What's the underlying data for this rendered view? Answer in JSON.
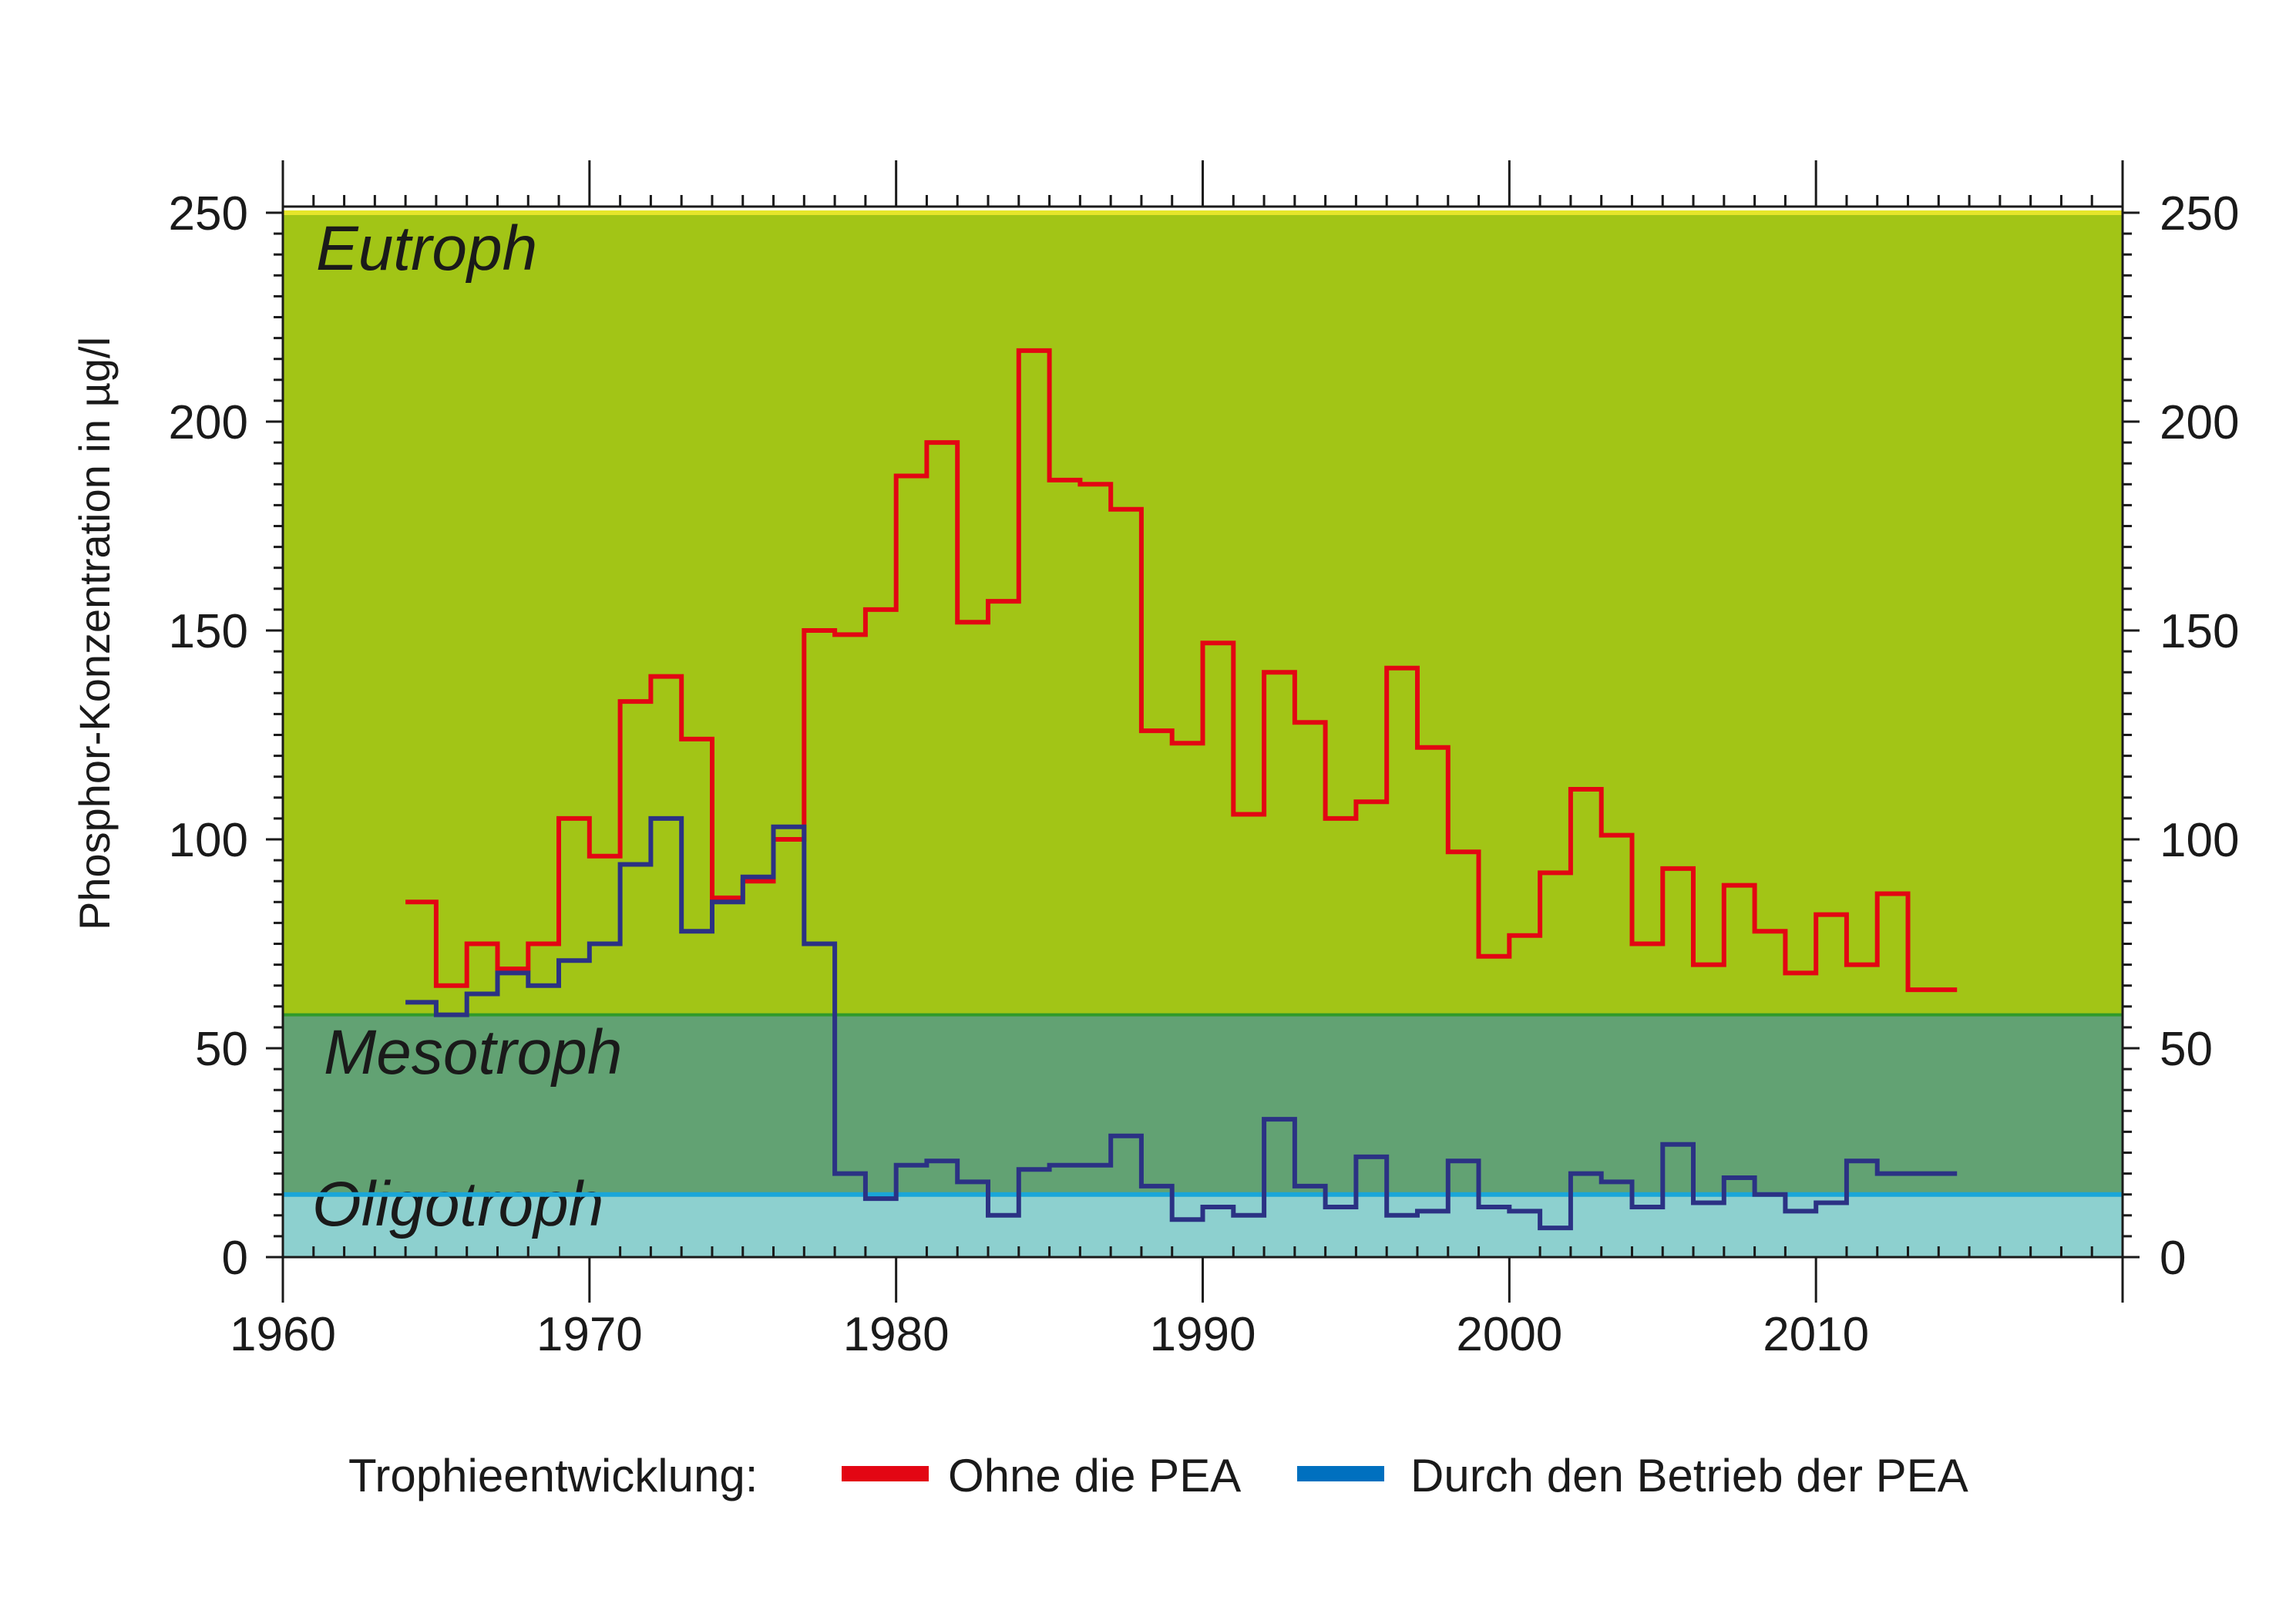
{
  "chart_data": {
    "type": "line",
    "step": true,
    "title": "",
    "xlabel": "",
    "ylabel": "Phosphor-Konzentration in µg/l",
    "xlim": [
      1960,
      2020
    ],
    "ylim": [
      0,
      250
    ],
    "x_ticks": [
      "1960",
      "1970",
      "1980",
      "1990",
      "2000",
      "2010"
    ],
    "y_ticks": [
      "0",
      "50",
      "100",
      "150",
      "200",
      "250"
    ],
    "zones": [
      {
        "label": "Eutroph",
        "from": 58,
        "to": 250,
        "color": "#a2c516"
      },
      {
        "label": "Mesotroph",
        "from": 15,
        "to": 58,
        "color": "#62a273"
      },
      {
        "label": "Oligotroph",
        "from": 0,
        "to": 15,
        "color": "#8dd0cf"
      }
    ],
    "legend": {
      "title": "Trophieentwicklung:",
      "position": "bottom",
      "items": [
        {
          "name": "Ohne die PEA",
          "color": "#e30613"
        },
        {
          "name": "Durch den Betrieb der PEA",
          "color": "#0070bf"
        }
      ]
    },
    "series": [
      {
        "name": "Ohne die PEA",
        "color": "#e30613",
        "x": [
          1964,
          1965,
          1966,
          1967,
          1968,
          1969,
          1970,
          1971,
          1972,
          1973,
          1974,
          1975,
          1976,
          1977,
          1978,
          1979,
          1980,
          1981,
          1982,
          1983,
          1984,
          1985,
          1986,
          1987,
          1988,
          1989,
          1990,
          1991,
          1992,
          1993,
          1994,
          1995,
          1996,
          1997,
          1998,
          1999,
          2000,
          2001,
          2002,
          2003,
          2004,
          2005,
          2006,
          2007,
          2008,
          2009,
          2010,
          2011,
          2012,
          2013,
          2014
        ],
        "values": [
          85,
          65,
          75,
          69,
          75,
          105,
          96,
          133,
          139,
          124,
          86,
          90,
          100,
          150,
          149,
          155,
          187,
          195,
          152,
          157,
          217,
          186,
          185,
          179,
          126,
          123,
          147,
          106,
          140,
          128,
          105,
          109,
          141,
          122,
          97,
          72,
          77,
          92,
          112,
          101,
          75,
          93,
          70,
          89,
          78,
          68,
          82,
          70,
          87,
          64,
          64
        ]
      },
      {
        "name": "Durch den Betrieb der PEA",
        "color": "#2b3284",
        "x": [
          1964,
          1965,
          1966,
          1967,
          1968,
          1969,
          1970,
          1971,
          1972,
          1973,
          1974,
          1975,
          1976,
          1977,
          1978,
          1979,
          1980,
          1981,
          1982,
          1983,
          1984,
          1985,
          1986,
          1987,
          1988,
          1989,
          1990,
          1991,
          1992,
          1993,
          1994,
          1995,
          1996,
          1997,
          1998,
          1999,
          2000,
          2001,
          2002,
          2003,
          2004,
          2005,
          2006,
          2007,
          2008,
          2009,
          2010,
          2011,
          2012,
          2013,
          2014
        ],
        "values": [
          61,
          58,
          63,
          68,
          65,
          71,
          75,
          94,
          105,
          78,
          85,
          91,
          103,
          75,
          20,
          14,
          22,
          23,
          18,
          10,
          21,
          22,
          22,
          29,
          17,
          9,
          12,
          10,
          33,
          17,
          12,
          24,
          10,
          11,
          23,
          12,
          11,
          7,
          20,
          18,
          12,
          27,
          13,
          19,
          15,
          11,
          13,
          23,
          20,
          20,
          20
        ]
      }
    ]
  }
}
